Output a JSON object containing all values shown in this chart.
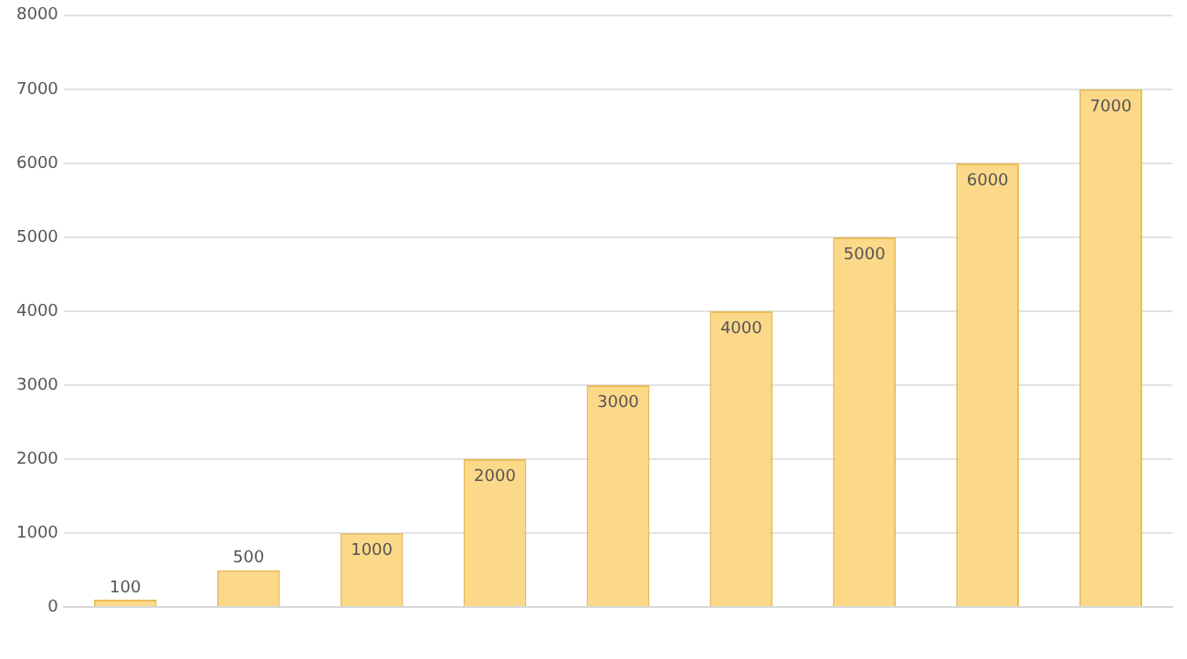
{
  "chart_data": {
    "type": "bar",
    "categories": [
      null,
      null,
      null,
      null,
      null,
      null,
      null,
      null,
      null
    ],
    "values": [
      100,
      500,
      1000,
      2000,
      3000,
      4000,
      5000,
      6000,
      7000
    ],
    "color": "#fcd889",
    "ylim": [
      0,
      8000
    ],
    "yticks": [
      0,
      1000,
      2000,
      3000,
      4000,
      5000,
      6000,
      7000,
      8000
    ],
    "grid": "y",
    "legend": false,
    "data_labels": true
  }
}
